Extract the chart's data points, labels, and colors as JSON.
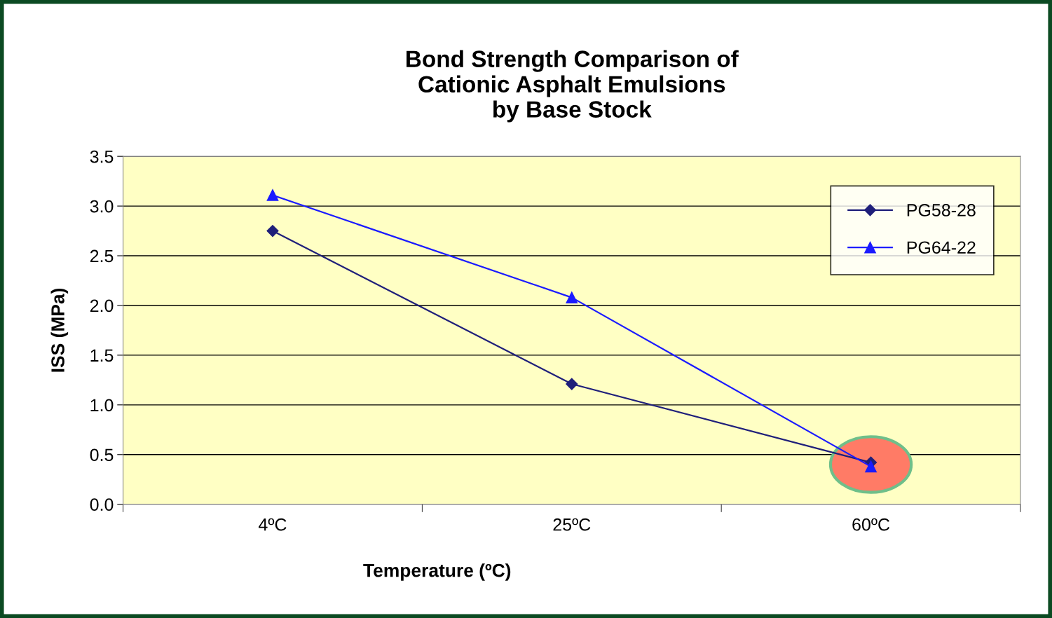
{
  "chart_data": {
    "type": "line",
    "title": "Bond Strength Comparison of\nCationic Asphalt Emulsions\nby Base Stock",
    "xlabel": "Temperature (ºC)",
    "ylabel": "ISS (MPa)",
    "categories": [
      "4ºC",
      "25ºC",
      "60ºC"
    ],
    "series": [
      {
        "name": "PG58-28",
        "color": "#1f1f7a",
        "values": [
          2.75,
          1.21,
          0.42
        ],
        "marker": "diamond"
      },
      {
        "name": "PG64-22",
        "color": "#1a1aff",
        "values": [
          3.11,
          2.08,
          0.38
        ],
        "marker": "triangle"
      }
    ],
    "ylim": [
      0,
      3.5
    ],
    "yticks": [
      {
        "value": 0,
        "label": "0.0"
      },
      {
        "value": 0.5,
        "label": "0.5"
      },
      {
        "value": 1,
        "label": "1.0"
      },
      {
        "value": 1.5,
        "label": "1.5"
      },
      {
        "value": 2,
        "label": "2.0"
      },
      {
        "value": 2.5,
        "label": "2.5"
      },
      {
        "value": 3,
        "label": "3.0"
      },
      {
        "value": 3.5,
        "label": "3.5"
      }
    ],
    "grid": "y",
    "legend": "top right",
    "line_style": "solid"
  }
}
